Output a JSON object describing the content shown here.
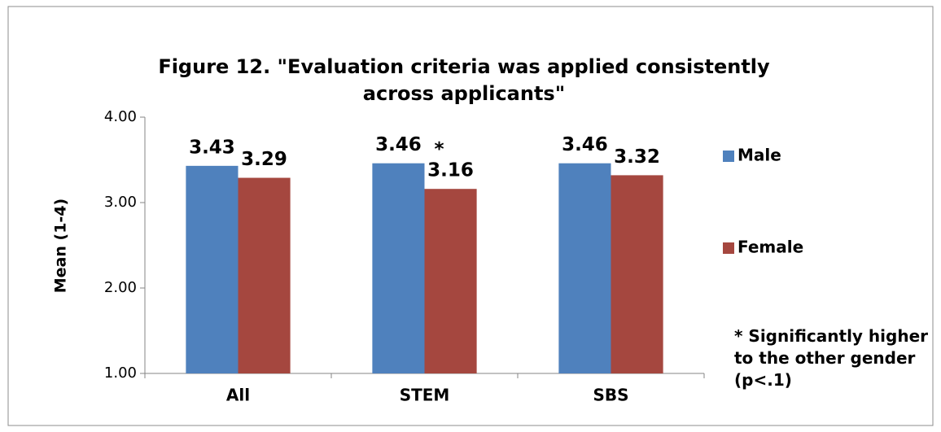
{
  "chart_data": {
    "type": "bar",
    "title": "Figure 12. \"Evaluation criteria was applied consistently across applicants\"",
    "y_label": "Mean  (1-4)",
    "categories": [
      "All",
      "STEM",
      "SBS"
    ],
    "series": [
      {
        "name": "Male",
        "color": "#4f81bd",
        "values": [
          3.43,
          3.46,
          3.46
        ]
      },
      {
        "name": "Female",
        "color": "#a5473f",
        "values": [
          3.29,
          3.16,
          3.32
        ]
      }
    ],
    "ylim": [
      1,
      4
    ],
    "yticks": [
      {
        "value": 1,
        "label": "1.00"
      },
      {
        "value": 2,
        "label": "2.00"
      },
      {
        "value": 3,
        "label": "3.00"
      },
      {
        "value": 4,
        "label": "4.00"
      }
    ],
    "star_annotation": "*",
    "note": "* Significantly higher to the other gender (p<.1)"
  }
}
